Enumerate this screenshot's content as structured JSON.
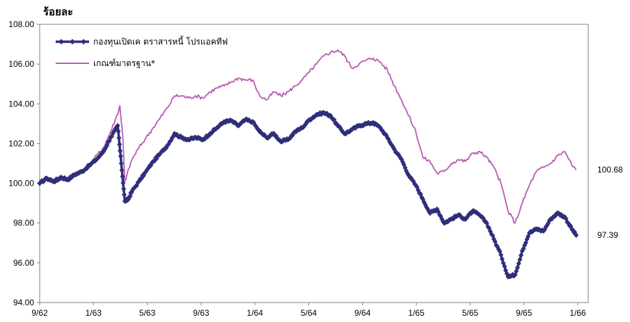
{
  "chart_data": {
    "type": "line",
    "title": "",
    "ylabel": "ร้อยละ",
    "xlabel": "",
    "ylim": [
      94,
      108
    ],
    "yticks": [
      "94.00",
      "96.00",
      "98.00",
      "100.00",
      "102.00",
      "104.00",
      "106.00",
      "108.00"
    ],
    "xtick_labels": [
      "9/62",
      "1/63",
      "5/63",
      "9/63",
      "1/64",
      "5/64",
      "9/64",
      "1/65",
      "5/65",
      "9/65",
      "1/66"
    ],
    "grid": false,
    "legend_position": "top-left",
    "series": [
      {
        "name": "กองทุนเปิดเค ตราสารหนี้ โปรแอคทีฟ",
        "color": "#2e2e7a",
        "marker": "diamond",
        "end_label": "97.39",
        "points": [
          [
            0,
            100.0
          ],
          [
            1,
            100.25
          ],
          [
            2,
            100.1
          ],
          [
            3,
            100.3
          ],
          [
            4,
            100.2
          ],
          [
            5,
            100.45
          ],
          [
            6,
            100.6
          ],
          [
            7,
            100.9
          ],
          [
            8,
            101.2
          ],
          [
            9,
            101.6
          ],
          [
            10,
            102.3
          ],
          [
            11,
            102.9
          ],
          [
            11.5,
            101.0
          ],
          [
            12,
            99.1
          ],
          [
            12.5,
            99.2
          ],
          [
            13,
            99.6
          ],
          [
            14,
            100.1
          ],
          [
            15,
            100.6
          ],
          [
            16,
            101.1
          ],
          [
            17,
            101.5
          ],
          [
            18,
            101.9
          ],
          [
            19,
            102.5
          ],
          [
            20,
            102.3
          ],
          [
            21,
            102.2
          ],
          [
            22,
            102.3
          ],
          [
            23,
            102.2
          ],
          [
            24,
            102.5
          ],
          [
            25,
            102.8
          ],
          [
            26,
            103.1
          ],
          [
            27,
            103.15
          ],
          [
            28,
            102.9
          ],
          [
            29,
            103.2
          ],
          [
            30,
            103.1
          ],
          [
            31,
            102.6
          ],
          [
            32,
            102.3
          ],
          [
            33,
            102.5
          ],
          [
            34,
            102.1
          ],
          [
            35,
            102.2
          ],
          [
            36,
            102.6
          ],
          [
            37,
            102.8
          ],
          [
            38,
            103.2
          ],
          [
            39,
            103.45
          ],
          [
            40,
            103.55
          ],
          [
            41,
            103.4
          ],
          [
            42,
            102.9
          ],
          [
            43,
            102.5
          ],
          [
            44,
            102.7
          ],
          [
            45,
            102.9
          ],
          [
            46,
            103.0
          ],
          [
            47,
            103.05
          ],
          [
            48,
            102.8
          ],
          [
            49,
            102.3
          ],
          [
            50,
            101.7
          ],
          [
            51,
            101.2
          ],
          [
            52,
            100.4
          ],
          [
            53,
            99.9
          ],
          [
            54,
            99.2
          ],
          [
            55,
            98.5
          ],
          [
            56,
            98.7
          ],
          [
            57,
            98.0
          ],
          [
            58,
            98.2
          ],
          [
            59,
            98.4
          ],
          [
            60,
            98.2
          ],
          [
            61,
            98.6
          ],
          [
            62,
            98.4
          ],
          [
            63,
            98.0
          ],
          [
            64,
            97.2
          ],
          [
            65,
            96.4
          ],
          [
            66,
            95.3
          ],
          [
            67,
            95.4
          ],
          [
            68,
            96.6
          ],
          [
            69,
            97.5
          ],
          [
            70,
            97.7
          ],
          [
            71,
            97.6
          ],
          [
            72,
            98.2
          ],
          [
            73,
            98.5
          ],
          [
            74,
            98.3
          ],
          [
            75,
            97.7
          ],
          [
            75.6,
            97.39
          ]
        ]
      },
      {
        "name": "เกณฑ์มาตรฐาน*",
        "color": "#b85ab4",
        "marker": "none",
        "end_label": "100.68",
        "points": [
          [
            0,
            100.0
          ],
          [
            1,
            100.2
          ],
          [
            2,
            100.0
          ],
          [
            3,
            100.2
          ],
          [
            4,
            100.1
          ],
          [
            5,
            100.5
          ],
          [
            6,
            100.6
          ],
          [
            7,
            100.9
          ],
          [
            8,
            101.4
          ],
          [
            9,
            101.8
          ],
          [
            10,
            102.6
          ],
          [
            11,
            103.5
          ],
          [
            11.3,
            103.9
          ],
          [
            11.7,
            102.4
          ],
          [
            12,
            100.1
          ],
          [
            13,
            101.2
          ],
          [
            14,
            101.8
          ],
          [
            15,
            102.3
          ],
          [
            16,
            102.8
          ],
          [
            17,
            103.3
          ],
          [
            18,
            103.8
          ],
          [
            19,
            104.4
          ],
          [
            20,
            104.4
          ],
          [
            21,
            104.3
          ],
          [
            22,
            104.4
          ],
          [
            23,
            104.3
          ],
          [
            24,
            104.6
          ],
          [
            25,
            104.8
          ],
          [
            26,
            104.9
          ],
          [
            27,
            105.1
          ],
          [
            28,
            105.3
          ],
          [
            29,
            105.2
          ],
          [
            30,
            105.2
          ],
          [
            31,
            104.4
          ],
          [
            32,
            104.2
          ],
          [
            33,
            104.6
          ],
          [
            34,
            104.4
          ],
          [
            35,
            104.6
          ],
          [
            36,
            104.9
          ],
          [
            37,
            105.2
          ],
          [
            38,
            105.6
          ],
          [
            39,
            106.0
          ],
          [
            40,
            106.4
          ],
          [
            41,
            106.6
          ],
          [
            42,
            106.7
          ],
          [
            43,
            106.4
          ],
          [
            44,
            105.8
          ],
          [
            45,
            106.0
          ],
          [
            46,
            106.2
          ],
          [
            47,
            106.3
          ],
          [
            48,
            106.1
          ],
          [
            49,
            105.7
          ],
          [
            50,
            104.9
          ],
          [
            51,
            104.2
          ],
          [
            52,
            103.4
          ],
          [
            53,
            102.6
          ],
          [
            54,
            101.3
          ],
          [
            55,
            101.1
          ],
          [
            56,
            100.5
          ],
          [
            57,
            100.6
          ],
          [
            58,
            101.0
          ],
          [
            59,
            101.2
          ],
          [
            60,
            101.1
          ],
          [
            61,
            101.5
          ],
          [
            62,
            101.6
          ],
          [
            63,
            101.3
          ],
          [
            64,
            100.8
          ],
          [
            65,
            100.0
          ],
          [
            66,
            98.6
          ],
          [
            67,
            98.0
          ],
          [
            68,
            99.0
          ],
          [
            69,
            99.9
          ],
          [
            70,
            100.6
          ],
          [
            71,
            100.8
          ],
          [
            72,
            101.0
          ],
          [
            73,
            101.4
          ],
          [
            74,
            101.6
          ],
          [
            75,
            100.9
          ],
          [
            75.6,
            100.68
          ]
        ]
      }
    ]
  }
}
